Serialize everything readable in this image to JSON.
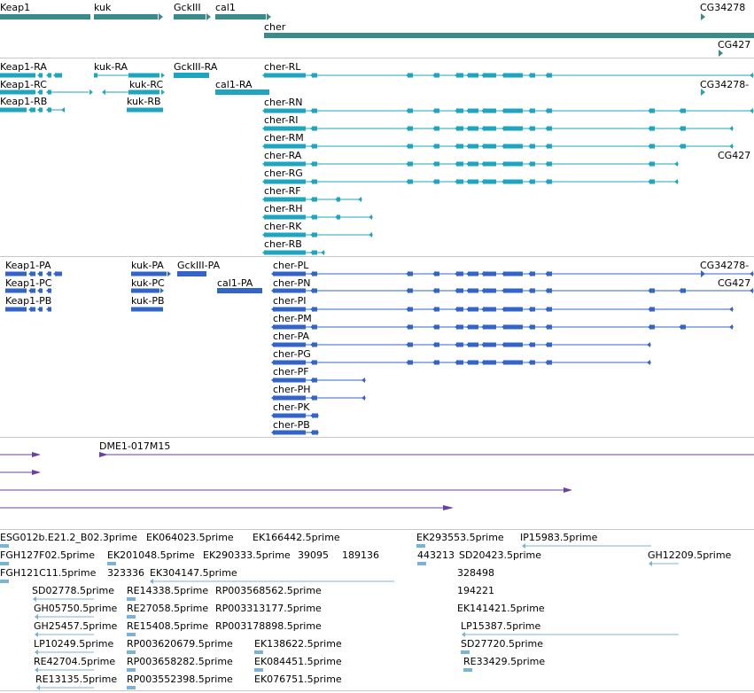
{
  "colors": {
    "gene": "#3a8c8c",
    "transcript": "#1ea6c0",
    "protein": "#3364c8",
    "clone": "#6a40a0",
    "est": "#7ab4d4"
  },
  "tracks": {
    "genes": {
      "features": [
        {
          "label": "Keap1"
        },
        {
          "label": "kuk"
        },
        {
          "label": "GckIII"
        },
        {
          "label": "cal1"
        },
        {
          "label": "cher"
        },
        {
          "label": "CG34278"
        },
        {
          "label": "CG427"
        }
      ]
    },
    "transcripts": {
      "features": [
        {
          "label": "Keap1-RA"
        },
        {
          "label": "Keap1-RC"
        },
        {
          "label": "Keap1-RB"
        },
        {
          "label": "kuk-RA"
        },
        {
          "label": "kuk-RC"
        },
        {
          "label": "kuk-RB"
        },
        {
          "label": "GckIII-RA"
        },
        {
          "label": "cal1-RA"
        },
        {
          "label": "cher-RL"
        },
        {
          "label": "cher-RN"
        },
        {
          "label": "cher-RI"
        },
        {
          "label": "cher-RM"
        },
        {
          "label": "cher-RA"
        },
        {
          "label": "cher-RG"
        },
        {
          "label": "cher-RF"
        },
        {
          "label": "cher-RH"
        },
        {
          "label": "cher-RK"
        },
        {
          "label": "cher-RB"
        },
        {
          "label": "CG34278-"
        },
        {
          "label": "CG427"
        }
      ]
    },
    "proteins": {
      "features": [
        {
          "label": "Keap1-PA"
        },
        {
          "label": "Keap1-PC"
        },
        {
          "label": "Keap1-PB"
        },
        {
          "label": "kuk-PA"
        },
        {
          "label": "kuk-PC"
        },
        {
          "label": "kuk-PB"
        },
        {
          "label": "GckIII-PA"
        },
        {
          "label": "cal1-PA"
        },
        {
          "label": "cher-PL"
        },
        {
          "label": "cher-PN"
        },
        {
          "label": "cher-PI"
        },
        {
          "label": "cher-PM"
        },
        {
          "label": "cher-PA"
        },
        {
          "label": "cher-PG"
        },
        {
          "label": "cher-PF"
        },
        {
          "label": "cher-PH"
        },
        {
          "label": "cher-PK"
        },
        {
          "label": "cher-PB"
        },
        {
          "label": "CG34278-"
        },
        {
          "label": "CG427"
        }
      ]
    },
    "clones": {
      "features": [
        {
          "label": "DME1-017M15"
        }
      ]
    },
    "ests": {
      "features": [
        {
          "label": "ESG012b.E21.2_B02.3prime"
        },
        {
          "label": "EK064023.5prime"
        },
        {
          "label": "EK166442.5prime"
        },
        {
          "label": "EK293553.5prime"
        },
        {
          "label": "IP15983.5prime"
        },
        {
          "label": "FGH127F02.5prime"
        },
        {
          "label": "EK201048.5prime"
        },
        {
          "label": "EK290333.5prime"
        },
        {
          "label": "39095"
        },
        {
          "label": "189136"
        },
        {
          "label": "443213"
        },
        {
          "label": "SD20423.5prime"
        },
        {
          "label": "GH12209.5prime"
        },
        {
          "label": "FGH121C11.5prime"
        },
        {
          "label": "323336"
        },
        {
          "label": "EK304147.5prime"
        },
        {
          "label": "328498"
        },
        {
          "label": "SD02778.5prime"
        },
        {
          "label": "RE14338.5prime"
        },
        {
          "label": "RP003568562.5prime"
        },
        {
          "label": "194221"
        },
        {
          "label": "GH05750.5prime"
        },
        {
          "label": "RE27058.5prime"
        },
        {
          "label": "RP003313177.5prime"
        },
        {
          "label": "EK141421.5prime"
        },
        {
          "label": "GH25457.5prime"
        },
        {
          "label": "RE15408.5prime"
        },
        {
          "label": "RP003178898.5prime"
        },
        {
          "label": "LP15387.5prime"
        },
        {
          "label": "LP10249.5prime"
        },
        {
          "label": "RP003620679.5prime"
        },
        {
          "label": "EK138622.5prime"
        },
        {
          "label": "SD27720.5prime"
        },
        {
          "label": "RE42704.5prime"
        },
        {
          "label": "RP003658282.5prime"
        },
        {
          "label": "EK084451.5prime"
        },
        {
          "label": "RE33429.5prime"
        },
        {
          "label": "RE13135.5prime"
        },
        {
          "label": "RP003552398.5prime"
        },
        {
          "label": "EK076751.5prime"
        }
      ]
    }
  }
}
